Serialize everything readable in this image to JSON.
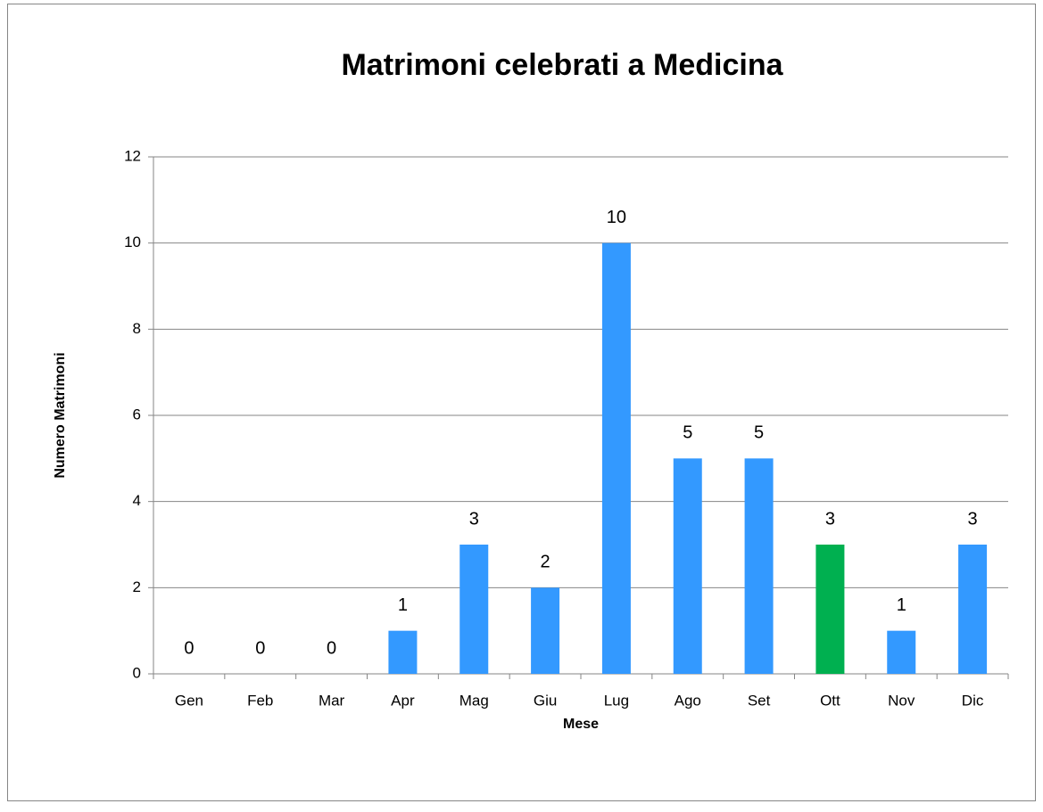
{
  "chart_data": {
    "type": "bar",
    "title": "Matrimoni celebrati a Medicina",
    "x_label": "Mese",
    "y_label": "Numero  Matrimoni",
    "categories": [
      "Gen",
      "Feb",
      "Mar",
      "Apr",
      "Mag",
      "Giu",
      "Lug",
      "Ago",
      "Set",
      "Ott",
      "Nov",
      "Dic"
    ],
    "values": [
      0,
      0,
      0,
      1,
      3,
      2,
      10,
      5,
      5,
      3,
      1,
      3
    ],
    "colors": [
      "#3399ff",
      "#3399ff",
      "#3399ff",
      "#3399ff",
      "#3399ff",
      "#3399ff",
      "#3399ff",
      "#3399ff",
      "#3399ff",
      "#00b050",
      "#3399ff",
      "#3399ff"
    ],
    "ylim": [
      0,
      12
    ],
    "yticks": [
      0,
      2,
      4,
      6,
      8,
      10,
      12
    ],
    "grid": true
  }
}
